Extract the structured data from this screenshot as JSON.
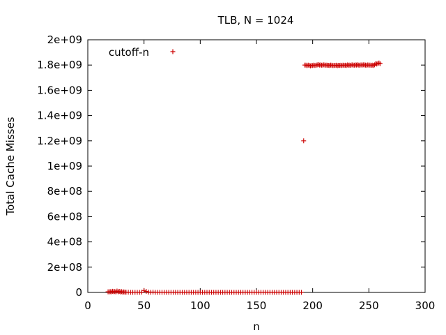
{
  "chart_data": {
    "type": "scatter",
    "title": "TLB, N = 1024",
    "xlabel": "n",
    "ylabel": "Total Cache Misses",
    "xlim": [
      0,
      300
    ],
    "ylim": [
      0,
      2000000000
    ],
    "x_ticks": [
      0,
      50,
      100,
      150,
      200,
      250,
      300
    ],
    "x_tick_labels": [
      "0",
      "50",
      "100",
      "150",
      "200",
      "250",
      "300"
    ],
    "y_ticks": [
      0,
      200000000,
      400000000,
      600000000,
      800000000,
      1000000000,
      1200000000,
      1400000000,
      1600000000,
      1800000000,
      2000000000
    ],
    "y_tick_labels": [
      "0",
      "2e+08",
      "4e+08",
      "6e+08",
      "8e+08",
      "1e+09",
      "1.2e+09",
      "1.4e+09",
      "1.6e+09",
      "1.8e+09",
      "2e+09"
    ],
    "grid": false,
    "legend_position": "top-left",
    "series": [
      {
        "name": "cutoff-n",
        "color": "#cc0000",
        "marker": "plus",
        "points": [
          [
            18,
            5000000
          ],
          [
            19,
            5000000
          ],
          [
            20,
            6000000
          ],
          [
            21,
            5000000
          ],
          [
            22,
            9000000
          ],
          [
            23,
            6000000
          ],
          [
            24,
            7000000
          ],
          [
            25,
            4000000
          ],
          [
            26,
            11000000
          ],
          [
            27,
            5000000
          ],
          [
            28,
            8000000
          ],
          [
            29,
            4000000
          ],
          [
            30,
            6000000
          ],
          [
            31,
            3000000
          ],
          [
            32,
            4000000
          ],
          [
            33,
            3000000
          ],
          [
            34,
            2000000
          ],
          [
            36,
            2000000
          ],
          [
            38,
            1000000
          ],
          [
            40,
            1000000
          ],
          [
            42,
            1000000
          ],
          [
            44,
            1000000
          ],
          [
            46,
            1000000
          ],
          [
            48,
            2000000
          ],
          [
            50,
            15000000
          ],
          [
            52,
            8000000
          ],
          [
            54,
            3000000
          ],
          [
            56,
            1000000
          ],
          [
            58,
            3000000
          ],
          [
            60,
            1000000
          ],
          [
            62,
            1000000
          ],
          [
            64,
            1000000
          ],
          [
            66,
            1000000
          ],
          [
            68,
            1000000
          ],
          [
            70,
            1000000
          ],
          [
            72,
            1000000
          ],
          [
            74,
            1000000
          ],
          [
            76,
            1000000
          ],
          [
            78,
            1000000
          ],
          [
            80,
            1000000
          ],
          [
            82,
            1000000
          ],
          [
            84,
            1000000
          ],
          [
            86,
            1000000
          ],
          [
            88,
            1000000
          ],
          [
            90,
            1000000
          ],
          [
            92,
            1000000
          ],
          [
            94,
            1000000
          ],
          [
            96,
            1000000
          ],
          [
            98,
            1000000
          ],
          [
            100,
            1000000
          ],
          [
            102,
            1000000
          ],
          [
            104,
            1000000
          ],
          [
            106,
            1000000
          ],
          [
            108,
            1000000
          ],
          [
            110,
            1000000
          ],
          [
            112,
            1000000
          ],
          [
            114,
            1000000
          ],
          [
            116,
            1000000
          ],
          [
            118,
            1000000
          ],
          [
            120,
            1000000
          ],
          [
            122,
            1000000
          ],
          [
            124,
            1000000
          ],
          [
            126,
            1000000
          ],
          [
            128,
            1000000
          ],
          [
            130,
            1000000
          ],
          [
            132,
            1000000
          ],
          [
            134,
            1000000
          ],
          [
            136,
            1000000
          ],
          [
            138,
            1000000
          ],
          [
            140,
            1000000
          ],
          [
            142,
            1000000
          ],
          [
            144,
            1000000
          ],
          [
            146,
            1000000
          ],
          [
            148,
            1000000
          ],
          [
            150,
            1000000
          ],
          [
            152,
            1000000
          ],
          [
            154,
            1000000
          ],
          [
            156,
            1000000
          ],
          [
            158,
            1000000
          ],
          [
            160,
            1000000
          ],
          [
            162,
            1000000
          ],
          [
            164,
            1000000
          ],
          [
            166,
            1000000
          ],
          [
            168,
            1000000
          ],
          [
            170,
            1000000
          ],
          [
            172,
            1000000
          ],
          [
            174,
            1000000
          ],
          [
            176,
            1000000
          ],
          [
            178,
            1000000
          ],
          [
            180,
            1000000
          ],
          [
            182,
            1000000
          ],
          [
            184,
            1000000
          ],
          [
            186,
            1000000
          ],
          [
            188,
            1000000
          ],
          [
            190,
            1000000
          ],
          [
            192,
            1200000000
          ],
          [
            193,
            1800000000
          ],
          [
            194,
            1800000000
          ],
          [
            195,
            1795000000
          ],
          [
            196,
            1800000000
          ],
          [
            197,
            1798000000
          ],
          [
            198,
            1793000000
          ],
          [
            199,
            1797000000
          ],
          [
            200,
            1796000000
          ],
          [
            201,
            1800000000
          ],
          [
            202,
            1797000000
          ],
          [
            203,
            1799000000
          ],
          [
            204,
            1801000000
          ],
          [
            205,
            1803000000
          ],
          [
            206,
            1800000000
          ],
          [
            207,
            1801000000
          ],
          [
            208,
            1799000000
          ],
          [
            209,
            1800000000
          ],
          [
            210,
            1802000000
          ],
          [
            211,
            1799000000
          ],
          [
            212,
            1800000000
          ],
          [
            213,
            1799000000
          ],
          [
            214,
            1798000000
          ],
          [
            215,
            1797000000
          ],
          [
            216,
            1800000000
          ],
          [
            217,
            1799000000
          ],
          [
            218,
            1796000000
          ],
          [
            219,
            1797000000
          ],
          [
            220,
            1798000000
          ],
          [
            221,
            1799000000
          ],
          [
            222,
            1795000000
          ],
          [
            223,
            1798000000
          ],
          [
            224,
            1797000000
          ],
          [
            225,
            1799000000
          ],
          [
            226,
            1796000000
          ],
          [
            227,
            1800000000
          ],
          [
            228,
            1798000000
          ],
          [
            229,
            1799000000
          ],
          [
            230,
            1797000000
          ],
          [
            231,
            1801000000
          ],
          [
            232,
            1799000000
          ],
          [
            233,
            1800000000
          ],
          [
            234,
            1798000000
          ],
          [
            235,
            1802000000
          ],
          [
            236,
            1800000000
          ],
          [
            237,
            1799000000
          ],
          [
            238,
            1801000000
          ],
          [
            239,
            1800000000
          ],
          [
            240,
            1802000000
          ],
          [
            241,
            1800000000
          ],
          [
            242,
            1799000000
          ],
          [
            243,
            1801000000
          ],
          [
            244,
            1800000000
          ],
          [
            245,
            1802000000
          ],
          [
            246,
            1801000000
          ],
          [
            247,
            1800000000
          ],
          [
            248,
            1799000000
          ],
          [
            249,
            1801000000
          ],
          [
            250,
            1800000000
          ],
          [
            251,
            1800000000
          ],
          [
            252,
            1798000000
          ],
          [
            253,
            1800000000
          ],
          [
            254,
            1797000000
          ],
          [
            255,
            1802000000
          ],
          [
            256,
            1810000000
          ],
          [
            257,
            1808000000
          ],
          [
            258,
            1812000000
          ],
          [
            259,
            1816000000
          ],
          [
            260,
            1811000000
          ]
        ]
      }
    ]
  }
}
